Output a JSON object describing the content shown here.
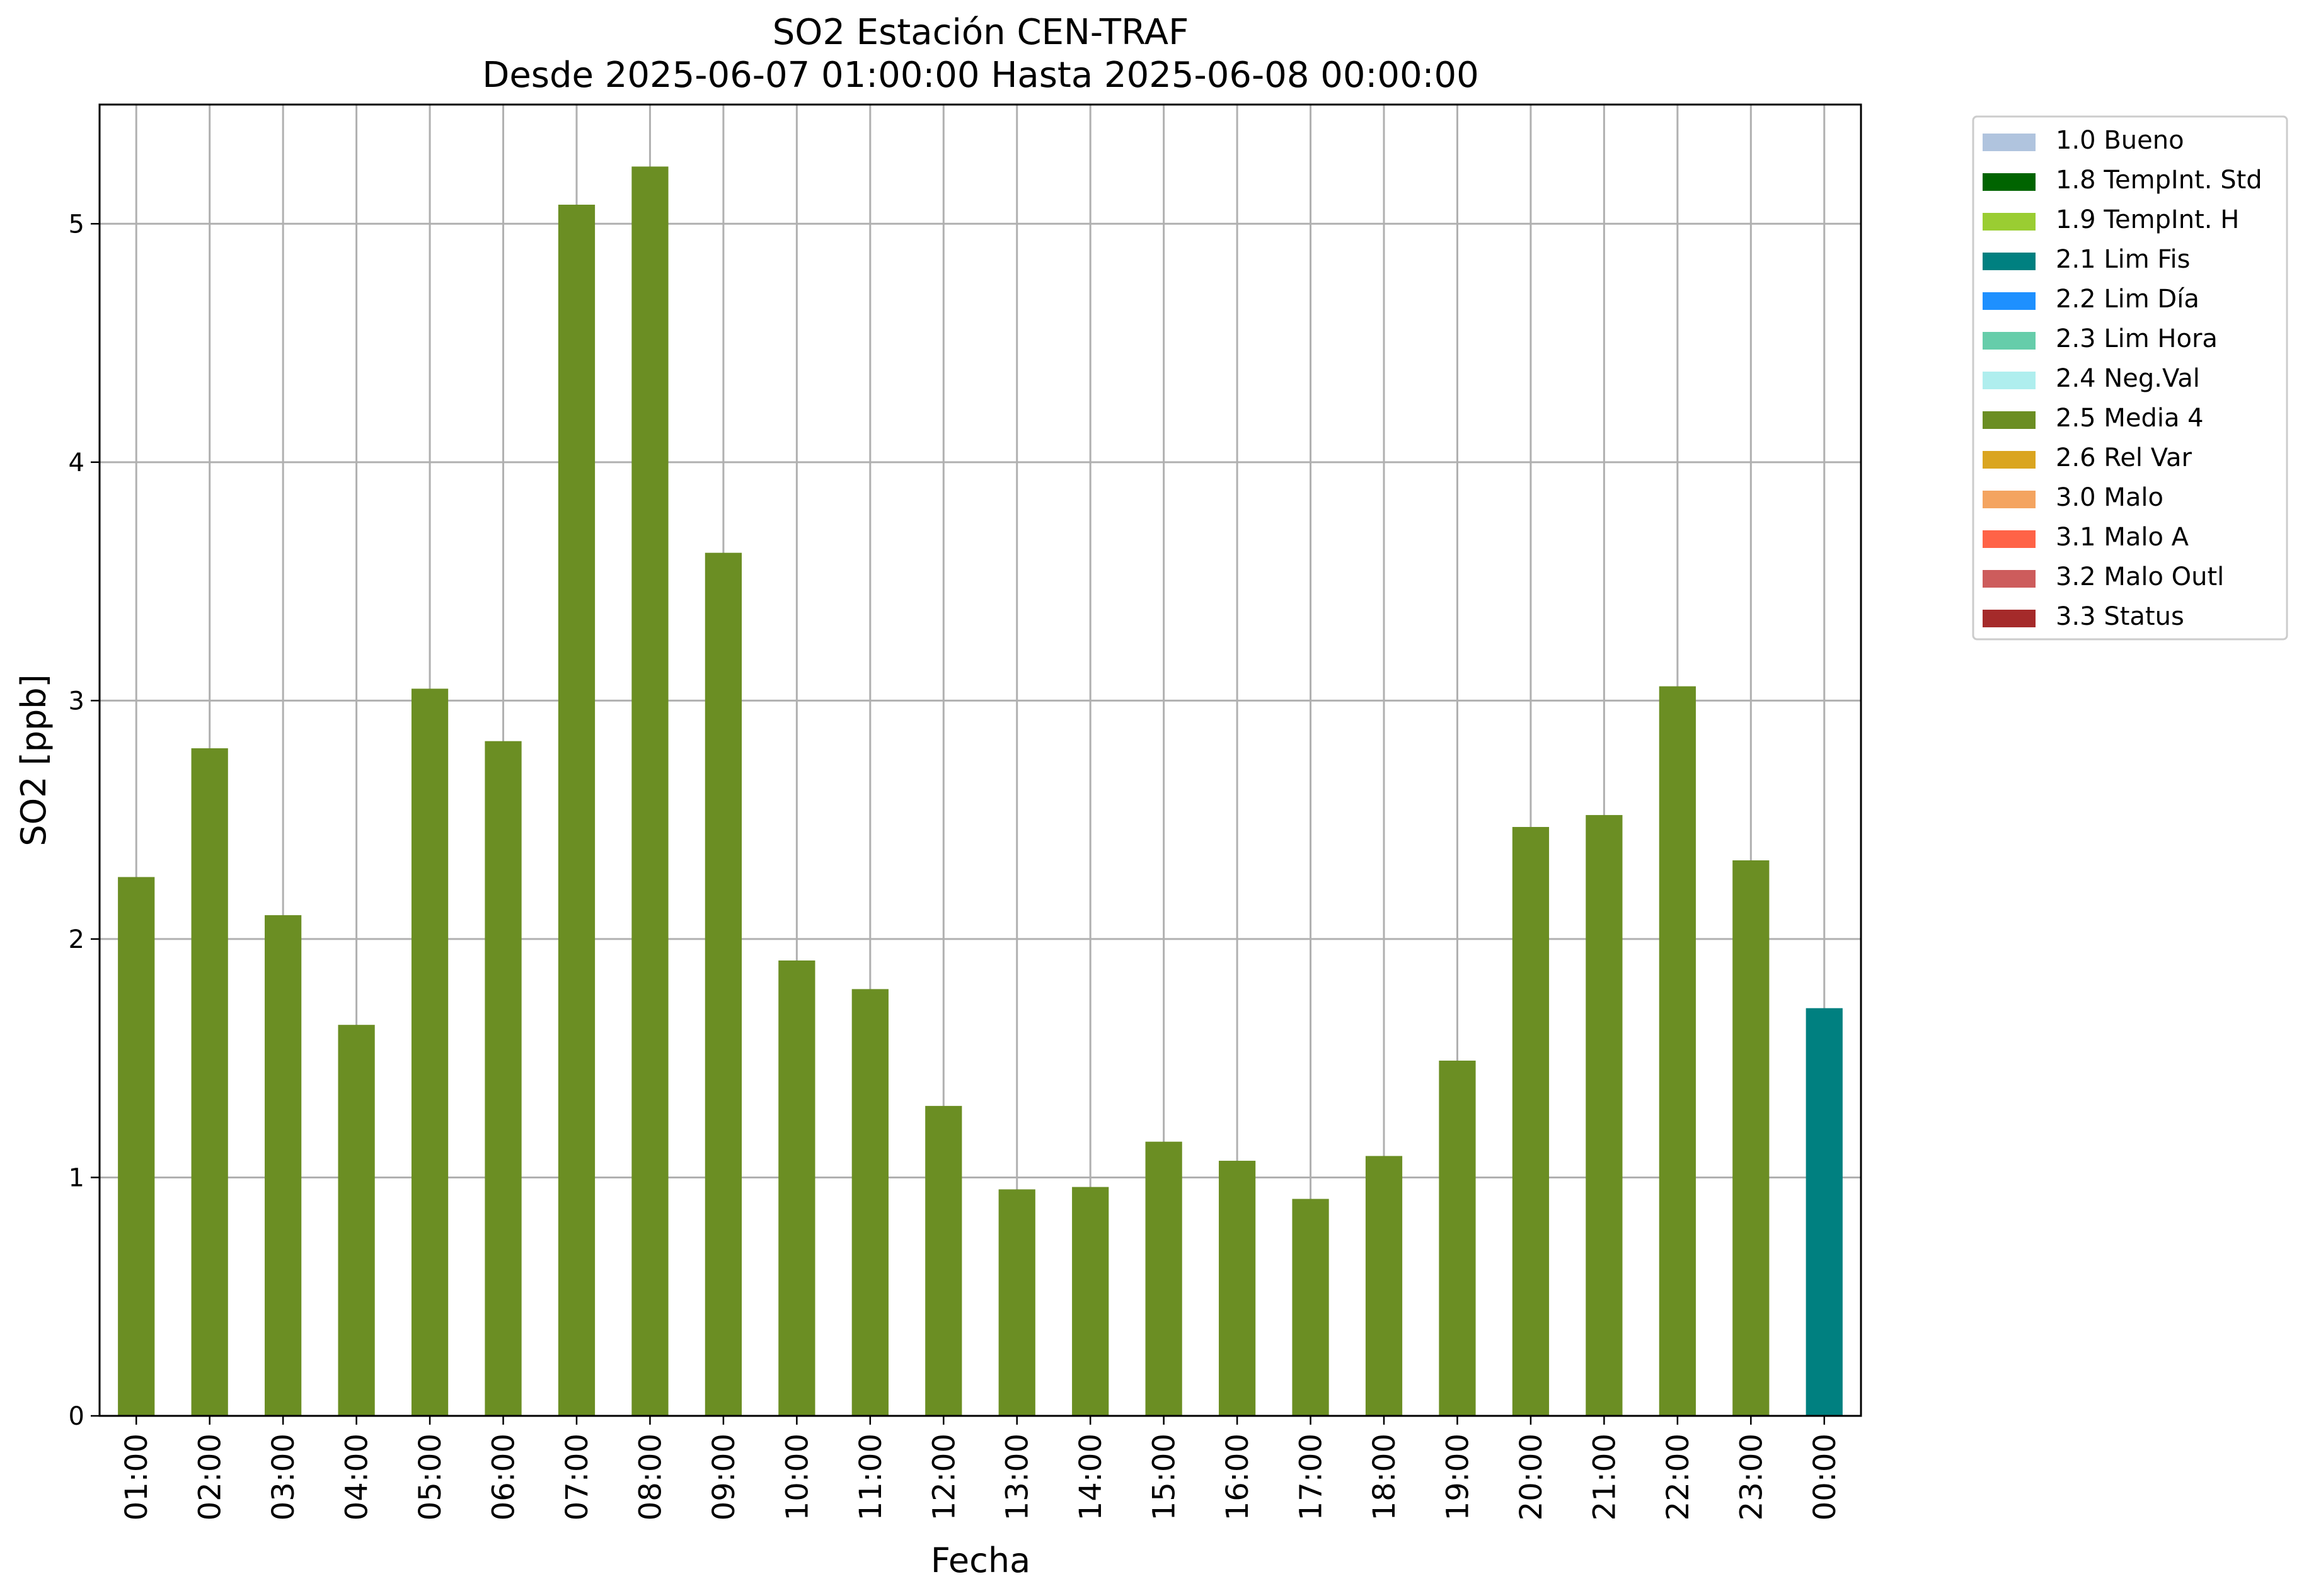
{
  "chart_data": {
    "type": "bar",
    "title": "SO2 Estación CEN-TRAF",
    "subtitle": "Desde 2025-06-07 01:00:00 Hasta 2025-06-08 00:00:00",
    "xlabel": "Fecha",
    "ylabel": "SO2 [ppb]",
    "ylim": [
      0,
      5.5
    ],
    "yticks": [
      0,
      1,
      2,
      3,
      4,
      5
    ],
    "grid": true,
    "legend_position": "outside-top-right",
    "categories": [
      "01:00",
      "02:00",
      "03:00",
      "04:00",
      "05:00",
      "06:00",
      "07:00",
      "08:00",
      "09:00",
      "10:00",
      "11:00",
      "12:00",
      "13:00",
      "14:00",
      "15:00",
      "16:00",
      "17:00",
      "18:00",
      "19:00",
      "20:00",
      "21:00",
      "22:00",
      "23:00",
      "00:00"
    ],
    "values": [
      2.26,
      2.8,
      2.1,
      1.64,
      3.05,
      2.83,
      5.08,
      5.24,
      3.62,
      1.91,
      1.79,
      1.3,
      0.95,
      0.96,
      1.15,
      1.07,
      0.91,
      1.09,
      1.49,
      2.47,
      2.52,
      3.06,
      2.33,
      1.71
    ],
    "flags": [
      "2.5 Media 4",
      "2.5 Media 4",
      "2.5 Media 4",
      "2.5 Media 4",
      "2.5 Media 4",
      "2.5 Media 4",
      "2.5 Media 4",
      "2.5 Media 4",
      "2.5 Media 4",
      "2.5 Media 4",
      "2.5 Media 4",
      "2.5 Media 4",
      "2.5 Media 4",
      "2.5 Media 4",
      "2.5 Media 4",
      "2.5 Media 4",
      "2.5 Media 4",
      "2.5 Media 4",
      "2.5 Media 4",
      "2.5 Media 4",
      "2.5 Media 4",
      "2.5 Media 4",
      "2.5 Media 4",
      "2.1 Lim Fis"
    ],
    "legend": [
      {
        "label": "1.0 Bueno",
        "color": "#b0c4de"
      },
      {
        "label": "1.8 TempInt. Std",
        "color": "#006400"
      },
      {
        "label": "1.9 TempInt. H",
        "color": "#9acd32"
      },
      {
        "label": "2.1 Lim Fis",
        "color": "#008080"
      },
      {
        "label": "2.2 Lim Día",
        "color": "#1e90ff"
      },
      {
        "label": "2.3 Lim Hora",
        "color": "#66cdaa"
      },
      {
        "label": "2.4 Neg.Val",
        "color": "#afeeee"
      },
      {
        "label": "2.5 Media 4",
        "color": "#6b8e23"
      },
      {
        "label": "2.6 Rel Var",
        "color": "#daa520"
      },
      {
        "label": "3.0 Malo",
        "color": "#f4a460"
      },
      {
        "label": "3.1 Malo A",
        "color": "#ff6347"
      },
      {
        "label": "3.2 Malo Outl",
        "color": "#cd5c5c"
      },
      {
        "label": "3.3 Status",
        "color": "#a52a2a"
      }
    ]
  }
}
